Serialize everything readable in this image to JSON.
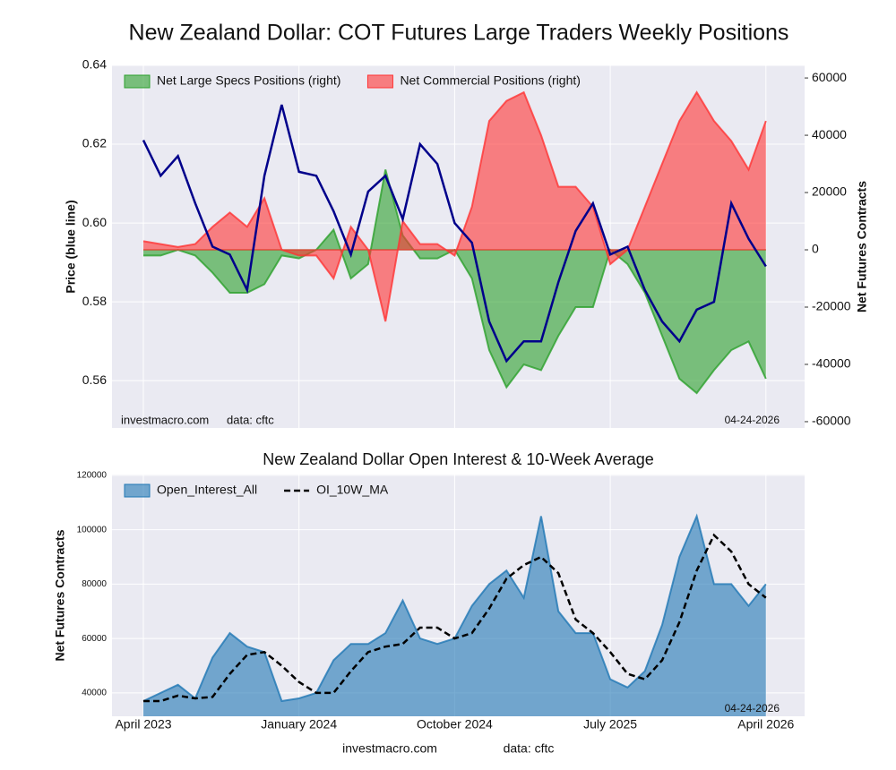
{
  "title": "New Zealand Dollar: COT Futures Large Traders Weekly Positions",
  "footer": {
    "site": "investmacro.com",
    "source": "data: cftc"
  },
  "chart_data": [
    {
      "type": "line",
      "ylabel": "Price (blue line)",
      "y2label": "Net Futures Contracts",
      "x": [
        "2023-04",
        "2023-05",
        "2023-06",
        "2023-07",
        "2023-08",
        "2023-09",
        "2023-10",
        "2023-11",
        "2023-12",
        "2024-01",
        "2024-02",
        "2024-03",
        "2024-04",
        "2024-05",
        "2024-06",
        "2024-07",
        "2024-08",
        "2024-09",
        "2024-10",
        "2024-11",
        "2024-12",
        "2025-01",
        "2025-02",
        "2025-03",
        "2025-04",
        "2025-05",
        "2025-06",
        "2025-07",
        "2025-08",
        "2025-09",
        "2025-10",
        "2025-11",
        "2025-12",
        "2026-01",
        "2026-02",
        "2026-03",
        "2026-04"
      ],
      "series": [
        {
          "type": "line",
          "color": "#00008b",
          "values": [
            0.621,
            0.612,
            0.617,
            0.605,
            0.594,
            0.592,
            0.583,
            0.612,
            0.63,
            0.613,
            0.612,
            0.603,
            0.592,
            0.608,
            0.612,
            0.601,
            0.62,
            0.615,
            0.6,
            0.595,
            0.575,
            0.565,
            0.57,
            0.57,
            0.585,
            0.598,
            0.605,
            0.592,
            0.594,
            0.583,
            0.575,
            0.57,
            0.578,
            0.58,
            0.605,
            0.596,
            0.589
          ]
        },
        {
          "name": "Net Large Specs Positions (right)",
          "type": "area",
          "axis": "y2",
          "color": "#2ca02c",
          "values": [
            -2000,
            -2000,
            0,
            -2000,
            -8000,
            -15000,
            -15000,
            -12000,
            -2000,
            -3000,
            0,
            7000,
            -10000,
            -5000,
            28000,
            5000,
            -3000,
            -3000,
            0,
            -10000,
            -35000,
            -48000,
            -40000,
            -42000,
            -30000,
            -20000,
            -20000,
            0,
            -5000,
            -15000,
            -30000,
            -45000,
            -50000,
            -42000,
            -35000,
            -32000,
            -45000
          ]
        },
        {
          "name": "Net Commercial Positions (right)",
          "type": "area",
          "axis": "y2",
          "color": "#ff3333",
          "values": [
            3000,
            2000,
            1000,
            2000,
            8000,
            13000,
            8000,
            18000,
            0,
            -2000,
            -2000,
            -10000,
            8000,
            0,
            -25000,
            10000,
            2000,
            2000,
            -2000,
            15000,
            45000,
            52000,
            55000,
            40000,
            22000,
            22000,
            15000,
            -5000,
            0,
            15000,
            30000,
            45000,
            55000,
            45000,
            38000,
            28000,
            45000
          ]
        }
      ],
      "ylim": [
        0.548,
        0.64
      ],
      "yticks": [
        0.56,
        0.58,
        {
          "value": 0.6,
          "label": "0.60"
        },
        0.62,
        0.64
      ],
      "y2lim": [
        -62200,
        64400
      ],
      "y2ticks": [
        -60000,
        -40000,
        -20000,
        0,
        20000,
        40000,
        60000
      ],
      "grid": true,
      "legend": "upper left",
      "annotations": {
        "site": "investmacro.com",
        "source": "data: cftc",
        "date": "04-24-2026"
      }
    },
    {
      "type": "area",
      "title": "New Zealand Dollar Open Interest & 10-Week Average",
      "ylabel": "Net Futures Contracts",
      "x": [
        "2023-04",
        "2023-05",
        "2023-06",
        "2023-07",
        "2023-08",
        "2023-09",
        "2023-10",
        "2023-11",
        "2023-12",
        "2024-01",
        "2024-02",
        "2024-03",
        "2024-04",
        "2024-05",
        "2024-06",
        "2024-07",
        "2024-08",
        "2024-09",
        "2024-10",
        "2024-11",
        "2024-12",
        "2025-01",
        "2025-02",
        "2025-03",
        "2025-04",
        "2025-05",
        "2025-06",
        "2025-07",
        "2025-08",
        "2025-09",
        "2025-10",
        "2025-11",
        "2025-12",
        "2026-01",
        "2026-02",
        "2026-03",
        "2026-04"
      ],
      "series": [
        {
          "name": "Open_Interest_All",
          "type": "area",
          "color": "#1f77b4",
          "values": [
            37000,
            40000,
            43000,
            38000,
            53000,
            62000,
            57000,
            55000,
            37000,
            38000,
            40000,
            52000,
            58000,
            58000,
            62000,
            74000,
            60000,
            58000,
            60000,
            72000,
            80000,
            85000,
            75000,
            105000,
            70000,
            62000,
            62000,
            45000,
            42000,
            48000,
            65000,
            90000,
            105000,
            80000,
            80000,
            72000,
            80000
          ]
        },
        {
          "name": "OI_10W_MA",
          "type": "line",
          "dash": true,
          "color": "#000000",
          "values": [
            37000,
            37000,
            39000,
            38000,
            38500,
            47000,
            54000,
            55000,
            50000,
            44000,
            40000,
            40000,
            48000,
            55000,
            57000,
            58000,
            64000,
            64000,
            60000,
            62000,
            71000,
            82000,
            87000,
            90000,
            84000,
            67000,
            62000,
            55000,
            47000,
            45000,
            52000,
            66000,
            85000,
            98000,
            92000,
            80000,
            75000
          ]
        }
      ],
      "ylim": [
        31400,
        120300
      ],
      "yticks": [
        40000,
        60000,
        80000,
        100000,
        120000
      ],
      "xticks": [
        {
          "value": "2023-04",
          "label": "April 2023"
        },
        {
          "value": "2024-01",
          "label": "January 2024"
        },
        {
          "value": "2024-10",
          "label": "October 2024"
        },
        {
          "value": "2025-07",
          "label": "July 2025"
        },
        {
          "value": "2026-04",
          "label": "April 2026"
        }
      ],
      "grid": true,
      "legend": "upper left",
      "annotations": {
        "date": "04-24-2026"
      }
    }
  ]
}
